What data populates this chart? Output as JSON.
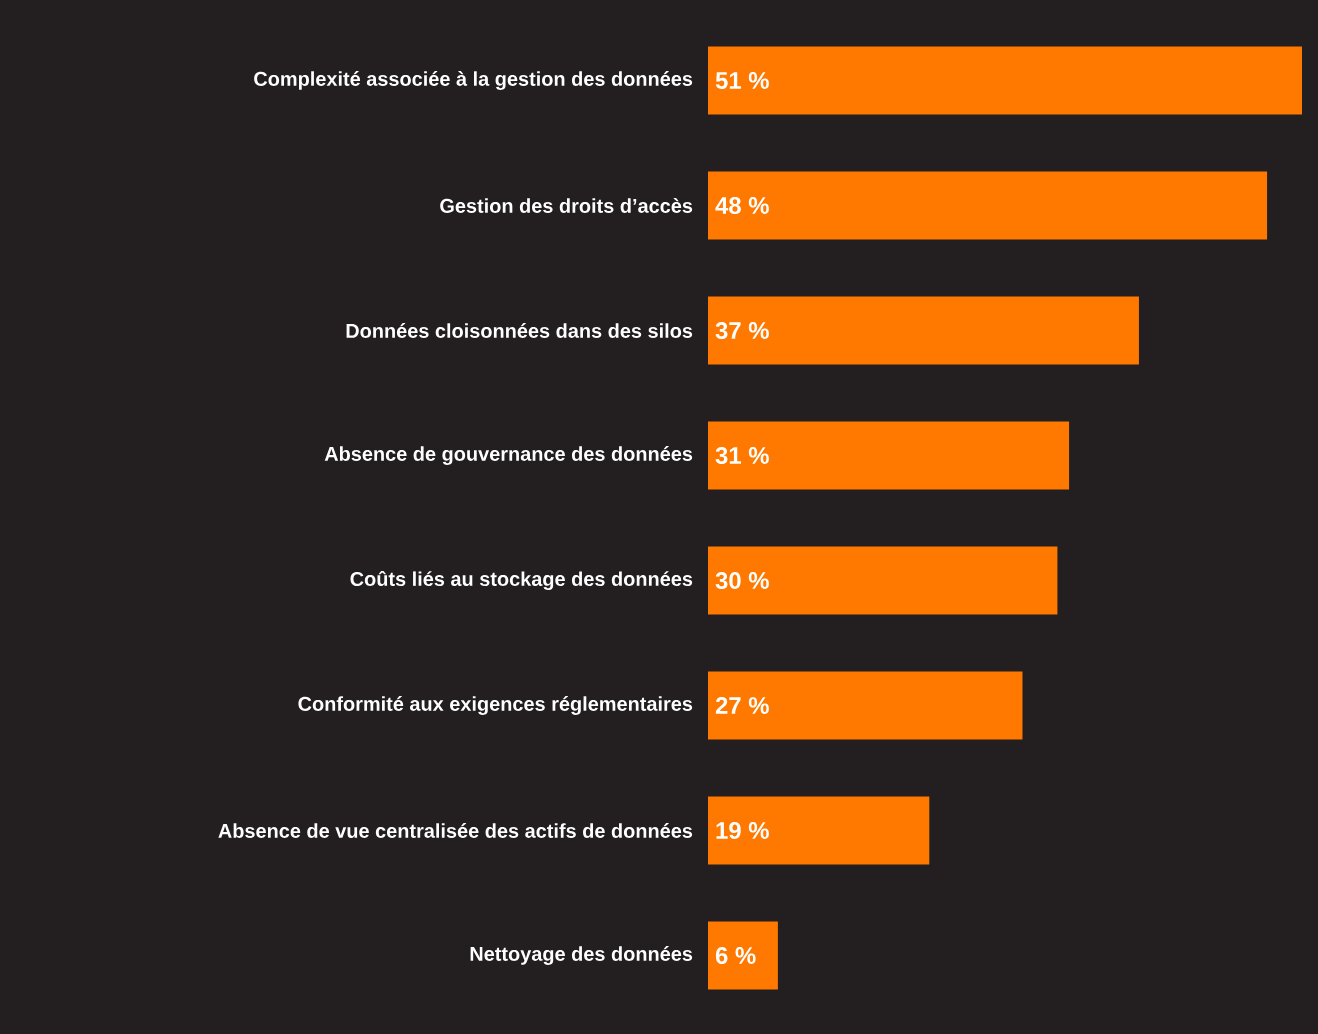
{
  "chart_data": {
    "type": "bar",
    "orientation": "horizontal",
    "color": "#ff7900",
    "categories": [
      "Complexité associée à la gestion des données",
      "Gestion des droits d’accès",
      "Données cloisonnées dans des silos",
      "Absence de gouvernance des données",
      "Coûts liés au stockage des données",
      "Conformité aux exigences réglementaires",
      "Absence de vue centralisée des actifs de données",
      "Nettoyage des données"
    ],
    "values": [
      51,
      48,
      37,
      31,
      30,
      27,
      19,
      6
    ],
    "value_labels": [
      "51 %",
      "48 %",
      "37 %",
      "31 %",
      "30 %",
      "27 %",
      "19 %",
      "6 %"
    ]
  }
}
